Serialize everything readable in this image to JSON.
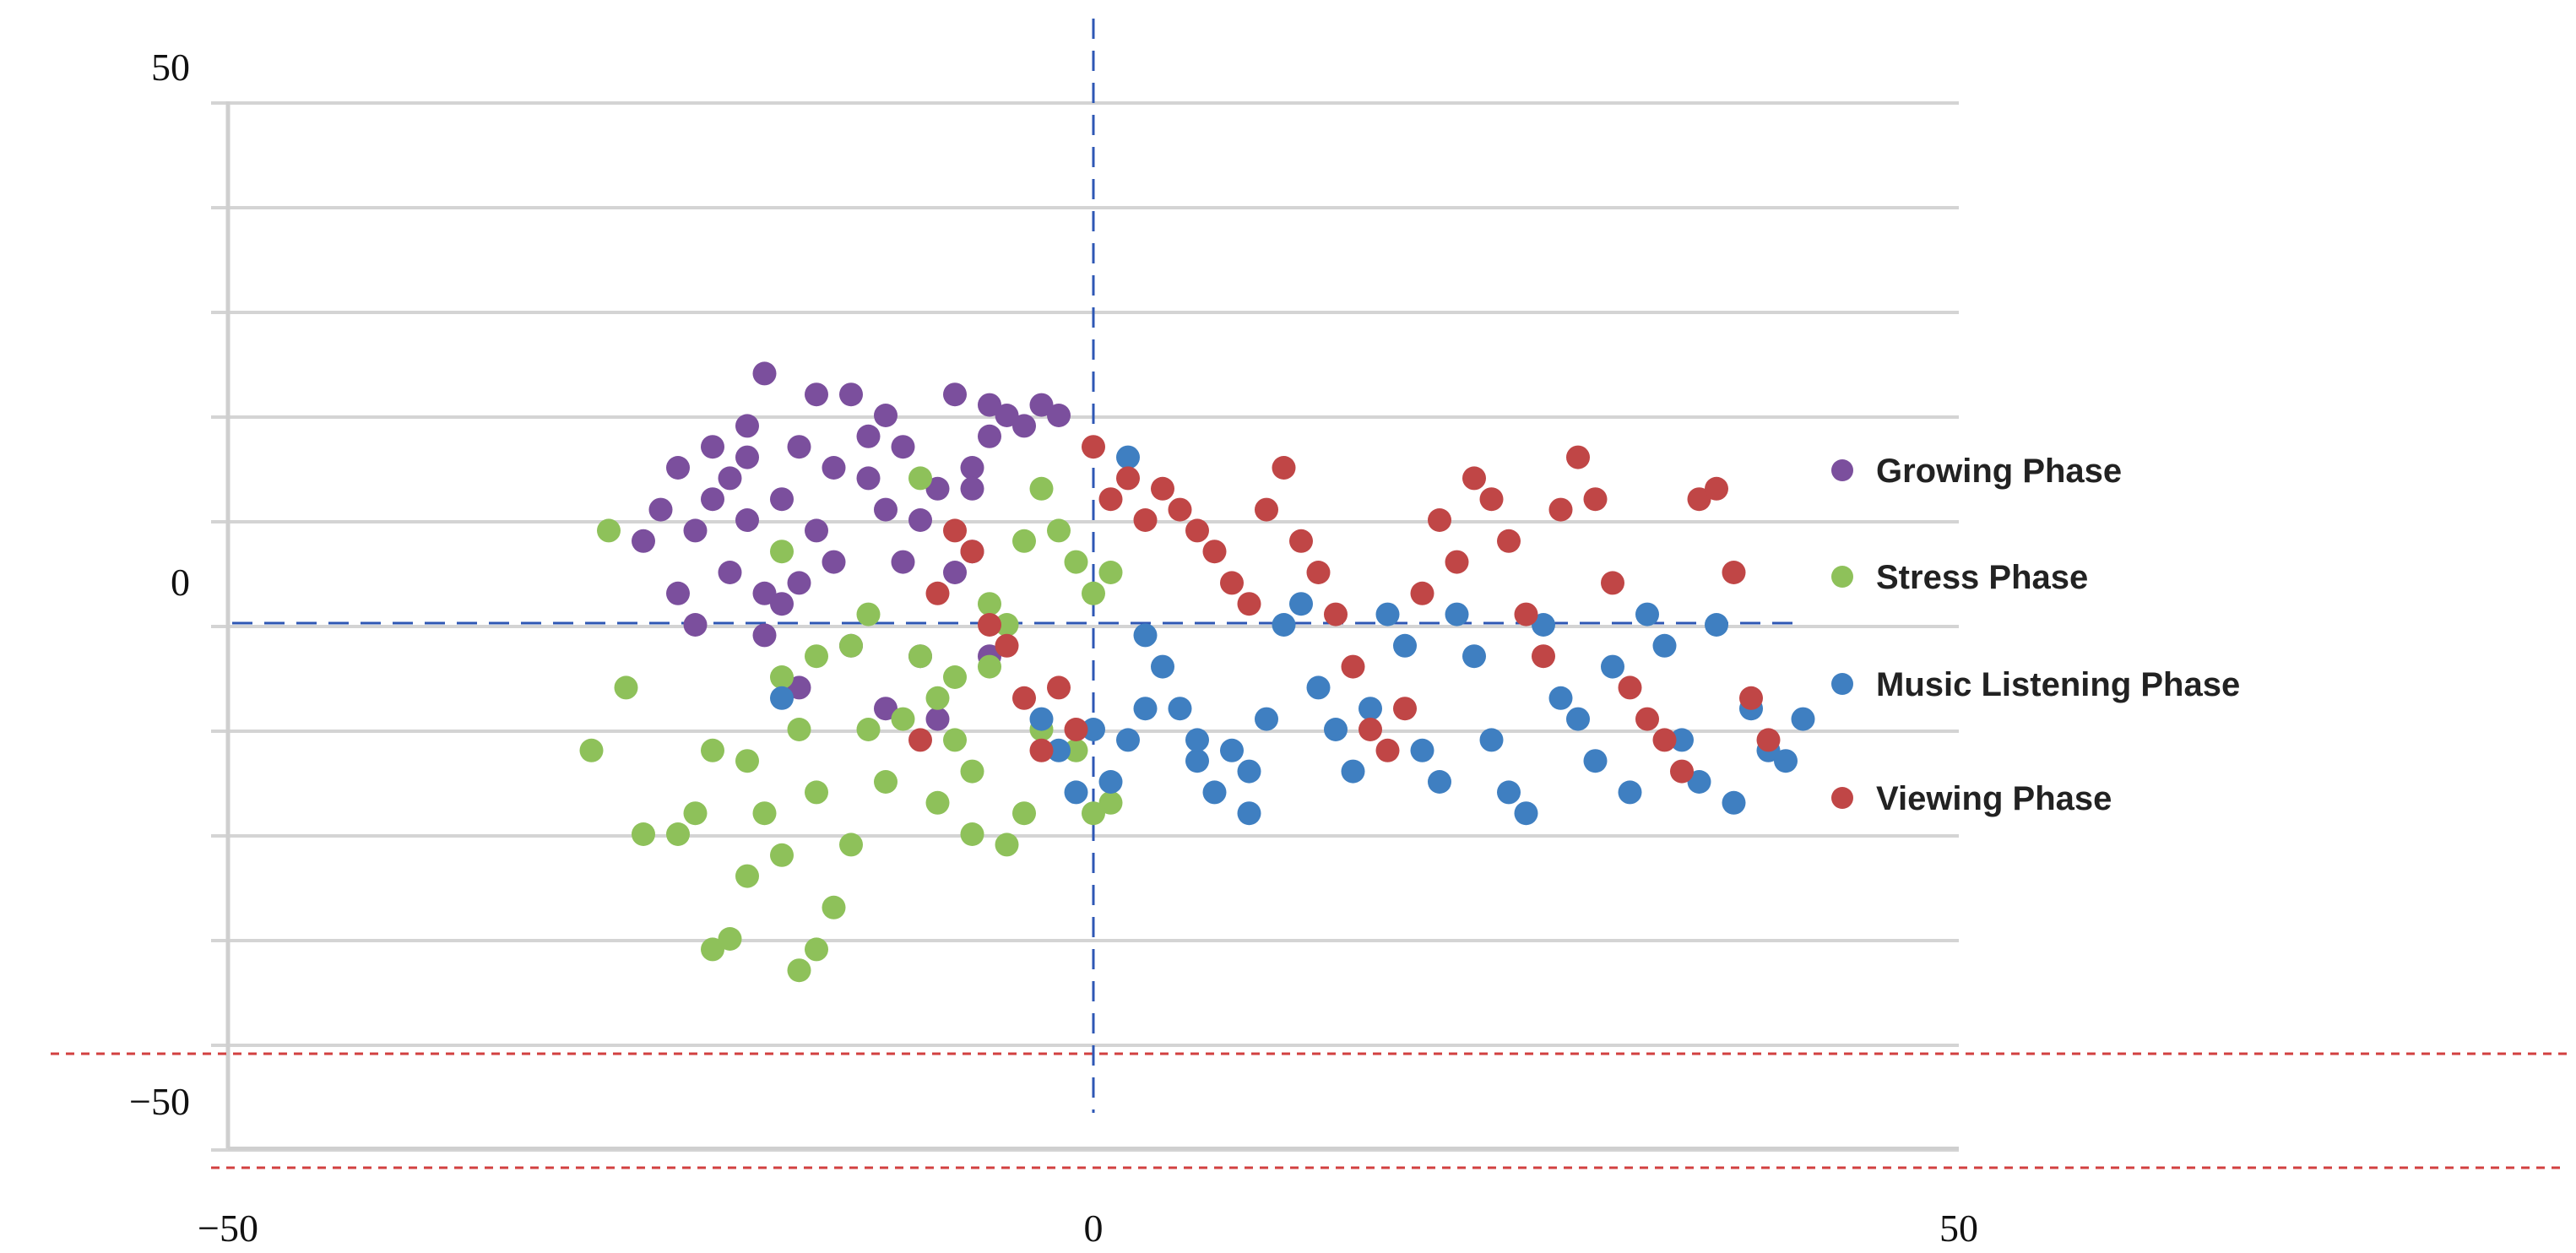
{
  "chart_data": {
    "type": "scatter",
    "xlim": [
      -50,
      50
    ],
    "ylim": [
      -50,
      50
    ],
    "x_ticks": [
      -50,
      0,
      50
    ],
    "y_ticks": [
      50,
      0,
      -50
    ],
    "x_tick_labels": [
      "−50",
      "0",
      "50"
    ],
    "y_tick_labels": [
      "50",
      "0",
      "−50"
    ],
    "grid": "horizontal",
    "legend_position": "right",
    "reference_lines": {
      "x": 0,
      "y": 0,
      "style": "dashed blue"
    },
    "series": [
      {
        "name": "Growing Phase",
        "color": "#7b4f9d",
        "points": [
          [
            -20,
            19
          ],
          [
            -19,
            24
          ],
          [
            -16,
            22
          ],
          [
            -14,
            22
          ],
          [
            -12,
            20
          ],
          [
            -22,
            17
          ],
          [
            -20,
            16
          ],
          [
            -17,
            17
          ],
          [
            -15,
            15
          ],
          [
            -13,
            14
          ],
          [
            -24,
            15
          ],
          [
            -21,
            14
          ],
          [
            -18,
            12
          ],
          [
            -25,
            11
          ],
          [
            -23,
            9
          ],
          [
            -20,
            10
          ],
          [
            -16,
            9
          ],
          [
            -12,
            11
          ],
          [
            -9,
            13
          ],
          [
            -7,
            15
          ],
          [
            -6,
            18
          ],
          [
            -5,
            20
          ],
          [
            -4,
            19
          ],
          [
            -6,
            21
          ],
          [
            -8,
            22
          ],
          [
            -3,
            21
          ],
          [
            -2,
            20
          ],
          [
            -7,
            13
          ],
          [
            -10,
            10
          ],
          [
            -11,
            6
          ],
          [
            -8,
            5
          ],
          [
            -7,
            7
          ],
          [
            -15,
            6
          ],
          [
            -17,
            4
          ],
          [
            -19,
            3
          ],
          [
            -21,
            5
          ],
          [
            -18,
            2
          ],
          [
            -23,
            0
          ],
          [
            -19,
            -1
          ],
          [
            -17,
            -6
          ],
          [
            -14,
            -2
          ],
          [
            -10,
            -3
          ],
          [
            -12,
            -8
          ],
          [
            -9,
            -9
          ],
          [
            -6,
            -3
          ],
          [
            -22,
            12
          ],
          [
            -26,
            8
          ],
          [
            -24,
            3
          ],
          [
            -13,
            18
          ],
          [
            -11,
            17
          ]
        ]
      },
      {
        "name": "Stress Phase",
        "color": "#8ec15a",
        "points": [
          [
            -28,
            9
          ],
          [
            -27,
            -6
          ],
          [
            -29,
            -12
          ],
          [
            -22,
            -12
          ],
          [
            -20,
            -13
          ],
          [
            -17,
            -10
          ],
          [
            -18,
            -5
          ],
          [
            -16,
            -3
          ],
          [
            -14,
            -2
          ],
          [
            -13,
            1
          ],
          [
            -10,
            -3
          ],
          [
            -9,
            -7
          ],
          [
            -8,
            -11
          ],
          [
            -7,
            -14
          ],
          [
            -6,
            -4
          ],
          [
            -5,
            0
          ],
          [
            -4,
            8
          ],
          [
            -3,
            13
          ],
          [
            -2,
            9
          ],
          [
            -1,
            6
          ],
          [
            0,
            3
          ],
          [
            1,
            5
          ],
          [
            -3,
            -10
          ],
          [
            -4,
            -18
          ],
          [
            -5,
            -21
          ],
          [
            -7,
            -20
          ],
          [
            -9,
            -17
          ],
          [
            -11,
            -9
          ],
          [
            -12,
            -15
          ],
          [
            -14,
            -21
          ],
          [
            -15,
            -27
          ],
          [
            -16,
            -31
          ],
          [
            -17,
            -33
          ],
          [
            -18,
            -22
          ],
          [
            -19,
            -18
          ],
          [
            -20,
            -24
          ],
          [
            -21,
            -30
          ],
          [
            -22,
            -31
          ],
          [
            -23,
            -18
          ],
          [
            -24,
            -20
          ],
          [
            -26,
            -20
          ],
          [
            -16,
            -16
          ],
          [
            -13,
            -10
          ],
          [
            0,
            -18
          ],
          [
            1,
            -17
          ],
          [
            -1,
            -12
          ],
          [
            -6,
            2
          ],
          [
            -8,
            -5
          ],
          [
            -10,
            14
          ],
          [
            -18,
            7
          ]
        ]
      },
      {
        "name": "Music Listening Phase",
        "color": "#3f7fc1",
        "points": [
          [
            2,
            16
          ],
          [
            3,
            -1
          ],
          [
            4,
            -4
          ],
          [
            5,
            -8
          ],
          [
            6,
            -13
          ],
          [
            7,
            -16
          ],
          [
            8,
            -12
          ],
          [
            9,
            -18
          ],
          [
            10,
            -9
          ],
          [
            11,
            0
          ],
          [
            12,
            2
          ],
          [
            13,
            -6
          ],
          [
            14,
            -10
          ],
          [
            15,
            -14
          ],
          [
            16,
            -8
          ],
          [
            17,
            1
          ],
          [
            18,
            -2
          ],
          [
            19,
            -12
          ],
          [
            20,
            -15
          ],
          [
            21,
            1
          ],
          [
            22,
            -3
          ],
          [
            23,
            -11
          ],
          [
            24,
            -16
          ],
          [
            25,
            -18
          ],
          [
            26,
            0
          ],
          [
            27,
            -7
          ],
          [
            28,
            -9
          ],
          [
            29,
            -13
          ],
          [
            30,
            -4
          ],
          [
            31,
            -16
          ],
          [
            32,
            1
          ],
          [
            33,
            -2
          ],
          [
            34,
            -11
          ],
          [
            35,
            -15
          ],
          [
            36,
            0
          ],
          [
            37,
            -17
          ],
          [
            38,
            -8
          ],
          [
            39,
            -12
          ],
          [
            40,
            -13
          ],
          [
            41,
            -9
          ],
          [
            1,
            -15
          ],
          [
            2,
            -11
          ],
          [
            3,
            -8
          ],
          [
            0,
            -10
          ],
          [
            -1,
            -16
          ],
          [
            -2,
            -12
          ],
          [
            -3,
            -9
          ],
          [
            6,
            -11
          ],
          [
            9,
            -14
          ],
          [
            -18,
            -7
          ]
        ]
      },
      {
        "name": "Viewing Phase",
        "color": "#c04646",
        "points": [
          [
            0,
            17
          ],
          [
            1,
            12
          ],
          [
            2,
            14
          ],
          [
            3,
            10
          ],
          [
            4,
            13
          ],
          [
            5,
            11
          ],
          [
            6,
            9
          ],
          [
            7,
            7
          ],
          [
            8,
            4
          ],
          [
            9,
            2
          ],
          [
            10,
            11
          ],
          [
            11,
            15
          ],
          [
            12,
            8
          ],
          [
            13,
            5
          ],
          [
            14,
            1
          ],
          [
            15,
            -4
          ],
          [
            16,
            -10
          ],
          [
            17,
            -12
          ],
          [
            18,
            -8
          ],
          [
            19,
            3
          ],
          [
            20,
            10
          ],
          [
            21,
            6
          ],
          [
            22,
            14
          ],
          [
            23,
            12
          ],
          [
            24,
            8
          ],
          [
            25,
            1
          ],
          [
            26,
            -3
          ],
          [
            27,
            11
          ],
          [
            28,
            16
          ],
          [
            29,
            12
          ],
          [
            30,
            4
          ],
          [
            31,
            -6
          ],
          [
            32,
            -9
          ],
          [
            33,
            -11
          ],
          [
            34,
            -14
          ],
          [
            35,
            12
          ],
          [
            36,
            13
          ],
          [
            37,
            5
          ],
          [
            38,
            -7
          ],
          [
            39,
            -11
          ],
          [
            -1,
            -10
          ],
          [
            -2,
            -6
          ],
          [
            -3,
            -12
          ],
          [
            -4,
            -7
          ],
          [
            -5,
            -2
          ],
          [
            -6,
            0
          ],
          [
            -7,
            7
          ],
          [
            -8,
            9
          ],
          [
            -9,
            3
          ],
          [
            -10,
            -11
          ]
        ]
      }
    ],
    "legend": [
      {
        "label": "Growing Phase",
        "color": "#7b4f9d"
      },
      {
        "label": "Stress Phase",
        "color": "#8ec15a"
      },
      {
        "label": "Music Listening Phase",
        "color": "#3f7fc1"
      },
      {
        "label": "Viewing Phase",
        "color": "#c04646"
      }
    ]
  }
}
